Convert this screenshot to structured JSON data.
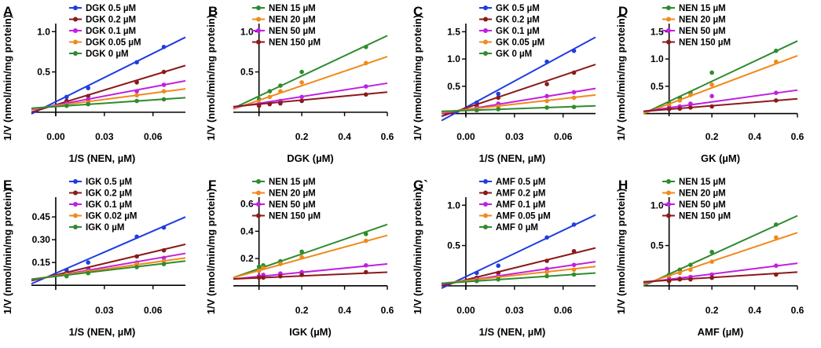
{
  "figure": {
    "ylabel_common": "1/V (nmol/min/mg protein)"
  },
  "chart_data": [
    {
      "label": "A",
      "type": "line",
      "mode": "lb",
      "xlabel": "1/S (NEN, µM)",
      "ylabel": "1/V (nmol/min/mg protein)",
      "xlim": [
        -0.015,
        0.08
      ],
      "ylim": [
        -0.05,
        1.1
      ],
      "xticks": [
        "0.00",
        "0.03",
        "0.06"
      ],
      "xtick_values": [
        0.0,
        0.03,
        0.06
      ],
      "yticks": [
        "0.5",
        "1.0"
      ],
      "ytick_values": [
        0.5,
        1.0
      ],
      "series": [
        {
          "name": "DGK 0.5 µM",
          "color": "#1f3de0",
          "x": [
            0.0067,
            0.02,
            0.05,
            0.0667
          ],
          "y": [
            0.19,
            0.3,
            0.62,
            0.81
          ],
          "fit": [
            -0.015,
            -0.02,
            0.08,
            0.93
          ]
        },
        {
          "name": "DGK 0.2 µM",
          "color": "#8b1a1a",
          "x": [
            0.0067,
            0.02,
            0.05,
            0.0667
          ],
          "y": [
            0.14,
            0.2,
            0.37,
            0.5
          ],
          "fit": [
            -0.015,
            0.0,
            0.08,
            0.58
          ]
        },
        {
          "name": "DGK 0.1 µM",
          "color": "#c020e0",
          "x": [
            0.0067,
            0.02,
            0.05,
            0.0667
          ],
          "y": [
            0.11,
            0.16,
            0.26,
            0.34
          ],
          "fit": [
            -0.015,
            0.03,
            0.08,
            0.39
          ]
        },
        {
          "name": "DGK 0.05 µM",
          "color": "#f08a1c",
          "x": [
            0.0067,
            0.02,
            0.05,
            0.0667
          ],
          "y": [
            0.09,
            0.12,
            0.21,
            0.26
          ],
          "fit": [
            -0.015,
            0.04,
            0.08,
            0.29
          ]
        },
        {
          "name": "DGK 0 µM",
          "color": "#2e8b2e",
          "x": [
            0.0067,
            0.02,
            0.05,
            0.0667
          ],
          "y": [
            0.08,
            0.1,
            0.14,
            0.16
          ],
          "fit": [
            -0.015,
            0.05,
            0.08,
            0.18
          ]
        }
      ]
    },
    {
      "label": "B",
      "type": "line",
      "mode": "sec",
      "xlabel": "DGK (µM)",
      "ylabel": "1/V (nmol/min/mg protein)",
      "xlim": [
        -0.12,
        0.6
      ],
      "ylim": [
        -0.05,
        1.1
      ],
      "xticks": [
        "0.2",
        "0.4",
        "0.6"
      ],
      "xtick_values": [
        0.2,
        0.4,
        0.6
      ],
      "yticks": [
        "0.5",
        "1.0"
      ],
      "ytick_values": [
        0.5,
        1.0
      ],
      "series": [
        {
          "name": "NEN 15 µM",
          "color": "#2e8b2e",
          "x": [
            0.0,
            0.05,
            0.1,
            0.2,
            0.5
          ],
          "y": [
            0.16,
            0.26,
            0.33,
            0.5,
            0.81
          ],
          "fit": [
            -0.12,
            0.05,
            0.6,
            0.95
          ]
        },
        {
          "name": "NEN 20 µM",
          "color": "#f08a1c",
          "x": [
            0.0,
            0.05,
            0.1,
            0.2,
            0.5
          ],
          "y": [
            0.11,
            0.19,
            0.26,
            0.37,
            0.61
          ],
          "fit": [
            -0.12,
            0.04,
            0.6,
            0.69
          ]
        },
        {
          "name": "NEN 50 µM",
          "color": "#c020e0",
          "x": [
            0.0,
            0.05,
            0.1,
            0.2,
            0.5
          ],
          "y": [
            0.09,
            0.11,
            0.14,
            0.19,
            0.32
          ],
          "fit": [
            -0.12,
            0.06,
            0.6,
            0.36
          ]
        },
        {
          "name": "NEN 150 µM",
          "color": "#8b1a1a",
          "x": [
            0.0,
            0.05,
            0.1,
            0.2,
            0.5
          ],
          "y": [
            0.08,
            0.1,
            0.11,
            0.14,
            0.22
          ],
          "fit": [
            -0.12,
            0.07,
            0.6,
            0.25
          ]
        }
      ]
    },
    {
      "label": "C",
      "type": "line",
      "mode": "lb",
      "xlabel": "1/S (NEN, µM)",
      "ylabel": "1/V (nmol/min/mg protein)",
      "xlim": [
        -0.015,
        0.08
      ],
      "ylim": [
        -0.05,
        1.65
      ],
      "xticks": [
        "0.00",
        "0.03",
        "0.06"
      ],
      "xtick_values": [
        0.0,
        0.03,
        0.06
      ],
      "yticks": [
        "0.5",
        "1.0",
        "1.5"
      ],
      "ytick_values": [
        0.5,
        1.0,
        1.5
      ],
      "series": [
        {
          "name": "GK 0.5 µM",
          "color": "#1f3de0",
          "x": [
            0.0067,
            0.02,
            0.05,
            0.0667
          ],
          "y": [
            0.2,
            0.36,
            0.95,
            1.15
          ],
          "fit": [
            -0.015,
            -0.13,
            0.08,
            1.4
          ]
        },
        {
          "name": "GK 0.2 µM",
          "color": "#8b1a1a",
          "x": [
            0.0067,
            0.02,
            0.05,
            0.0667
          ],
          "y": [
            0.14,
            0.29,
            0.54,
            0.75
          ],
          "fit": [
            -0.015,
            -0.05,
            0.08,
            0.9
          ]
        },
        {
          "name": "GK 0.1 µM",
          "color": "#c020e0",
          "x": [
            0.0067,
            0.02,
            0.05,
            0.0667
          ],
          "y": [
            0.1,
            0.18,
            0.32,
            0.39
          ],
          "fit": [
            -0.015,
            0.0,
            0.08,
            0.46
          ]
        },
        {
          "name": "GK 0.05 µM",
          "color": "#f08a1c",
          "x": [
            0.0067,
            0.02,
            0.05,
            0.0667
          ],
          "y": [
            0.08,
            0.13,
            0.23,
            0.29
          ],
          "fit": [
            -0.015,
            0.02,
            0.08,
            0.34
          ]
        },
        {
          "name": "GK 0 µM",
          "color": "#2e8b2e",
          "x": [
            0.0067,
            0.02,
            0.05,
            0.0667
          ],
          "y": [
            0.06,
            0.08,
            0.11,
            0.12
          ],
          "fit": [
            -0.015,
            0.04,
            0.08,
            0.14
          ]
        }
      ]
    },
    {
      "label": "D",
      "type": "line",
      "mode": "sec",
      "xlabel": "GK (µM)",
      "ylabel": "1/V (nmol/min/mg protein)",
      "xlim": [
        -0.12,
        0.6
      ],
      "ylim": [
        -0.05,
        1.65
      ],
      "xticks": [
        "0.2",
        "0.4",
        "0.6"
      ],
      "xtick_values": [
        0.2,
        0.4,
        0.6
      ],
      "yticks": [
        "0.5",
        "1.0",
        "1.5"
      ],
      "ytick_values": [
        0.5,
        1.0,
        1.5
      ],
      "series": [
        {
          "name": "NEN 15 µM",
          "color": "#2e8b2e",
          "x": [
            0.0,
            0.05,
            0.1,
            0.2,
            0.5
          ],
          "y": [
            0.19,
            0.29,
            0.38,
            0.75,
            1.15
          ],
          "fit": [
            -0.12,
            0.0,
            0.6,
            1.33
          ]
        },
        {
          "name": "NEN 20 µM",
          "color": "#f08a1c",
          "x": [
            0.0,
            0.05,
            0.1,
            0.2,
            0.5
          ],
          "y": [
            0.14,
            0.24,
            0.34,
            0.53,
            0.95
          ],
          "fit": [
            -0.12,
            0.0,
            0.6,
            1.06
          ]
        },
        {
          "name": "NEN 50 µM",
          "color": "#c020e0",
          "x": [
            0.0,
            0.05,
            0.1,
            0.2,
            0.5
          ],
          "y": [
            0.1,
            0.13,
            0.18,
            0.32,
            0.38
          ],
          "fit": [
            -0.12,
            0.04,
            0.6,
            0.43
          ]
        },
        {
          "name": "NEN 150 µM",
          "color": "#8b1a1a",
          "x": [
            0.0,
            0.05,
            0.1,
            0.2,
            0.5
          ],
          "y": [
            0.08,
            0.09,
            0.11,
            0.13,
            0.24
          ],
          "fit": [
            -0.12,
            0.04,
            0.6,
            0.27
          ]
        }
      ]
    },
    {
      "label": "E",
      "type": "line",
      "mode": "lb",
      "xlabel": "1/S (NEN, µM)",
      "ylabel": "1/V (nmol/min/mg protein)",
      "xlim": [
        -0.015,
        0.08
      ],
      "ylim": [
        -0.03,
        0.58
      ],
      "xticks": [
        "0.03",
        "0.06"
      ],
      "xtick_values": [
        0.03,
        0.06
      ],
      "yticks": [
        "0.15",
        "0.30",
        "0.45"
      ],
      "ytick_values": [
        0.15,
        0.3,
        0.45
      ],
      "series": [
        {
          "name": "IGK 0.5 µM",
          "color": "#1f3de0",
          "x": [
            0.0067,
            0.02,
            0.05,
            0.0667
          ],
          "y": [
            0.1,
            0.15,
            0.32,
            0.38
          ],
          "fit": [
            -0.015,
            0.01,
            0.08,
            0.45
          ]
        },
        {
          "name": "IGK 0.2 µM",
          "color": "#8b1a1a",
          "x": [
            0.0067,
            0.02,
            0.05,
            0.0667
          ],
          "y": [
            0.08,
            0.11,
            0.19,
            0.23
          ],
          "fit": [
            -0.015,
            0.03,
            0.08,
            0.27
          ]
        },
        {
          "name": "IGK 0.1 µM",
          "color": "#c020e0",
          "x": [
            0.0067,
            0.02,
            0.05,
            0.0667
          ],
          "y": [
            0.07,
            0.1,
            0.15,
            0.18
          ],
          "fit": [
            -0.015,
            0.035,
            0.08,
            0.21
          ]
        },
        {
          "name": "IGK 0.02 µM",
          "color": "#f08a1c",
          "x": [
            0.0067,
            0.02,
            0.05,
            0.0667
          ],
          "y": [
            0.07,
            0.09,
            0.14,
            0.16
          ],
          "fit": [
            -0.015,
            0.04,
            0.08,
            0.18
          ]
        },
        {
          "name": "IGK 0 µM",
          "color": "#2e8b2e",
          "x": [
            0.0067,
            0.02,
            0.05,
            0.0667
          ],
          "y": [
            0.06,
            0.08,
            0.12,
            0.14
          ],
          "fit": [
            -0.015,
            0.04,
            0.08,
            0.16
          ]
        }
      ]
    },
    {
      "label": "F",
      "type": "line",
      "mode": "sec",
      "xlabel": "IGK (µM)",
      "ylabel": "1/V (nmol/min/mg protein)",
      "xlim": [
        -0.12,
        0.6
      ],
      "ylim": [
        -0.03,
        0.65
      ],
      "xticks": [
        "0.2",
        "0.4",
        "0.6"
      ],
      "xtick_values": [
        0.2,
        0.4,
        0.6
      ],
      "yticks": [
        "0.2",
        "0.4",
        "0.6"
      ],
      "ytick_values": [
        0.2,
        0.4,
        0.6
      ],
      "series": [
        {
          "name": "NEN 15 µM",
          "color": "#2e8b2e",
          "x": [
            0.0,
            0.02,
            0.1,
            0.2,
            0.5
          ],
          "y": [
            0.14,
            0.15,
            0.18,
            0.25,
            0.38
          ],
          "fit": [
            -0.12,
            0.06,
            0.6,
            0.45
          ]
        },
        {
          "name": "NEN 20 µM",
          "color": "#f08a1c",
          "x": [
            0.0,
            0.02,
            0.1,
            0.2,
            0.5
          ],
          "y": [
            0.11,
            0.13,
            0.16,
            0.21,
            0.33
          ],
          "fit": [
            -0.12,
            0.06,
            0.6,
            0.37
          ]
        },
        {
          "name": "NEN 50 µM",
          "color": "#c020e0",
          "x": [
            0.0,
            0.02,
            0.1,
            0.2,
            0.5
          ],
          "y": [
            0.07,
            0.08,
            0.09,
            0.1,
            0.15
          ],
          "fit": [
            -0.12,
            0.05,
            0.6,
            0.16
          ]
        },
        {
          "name": "NEN 150 µM",
          "color": "#8b1a1a",
          "x": [
            0.0,
            0.02,
            0.1,
            0.2,
            0.5
          ],
          "y": [
            0.06,
            0.06,
            0.07,
            0.08,
            0.1
          ],
          "fit": [
            -0.12,
            0.05,
            0.6,
            0.1
          ]
        }
      ]
    },
    {
      "label": "G`",
      "type": "line",
      "mode": "lb",
      "xlabel": "1/S (NEN, µM)",
      "ylabel": "1/V (nmol/min/mg protein)",
      "xlim": [
        -0.015,
        0.08
      ],
      "ylim": [
        -0.05,
        1.1
      ],
      "xticks": [
        "0.00",
        "0.03",
        "0.06"
      ],
      "xtick_values": [
        0.0,
        0.03,
        0.06
      ],
      "yticks": [
        "0.5",
        "1.0"
      ],
      "ytick_values": [
        0.5,
        1.0
      ],
      "series": [
        {
          "name": "AMF 0.5 µM",
          "color": "#1f3de0",
          "x": [
            0.0067,
            0.02,
            0.05,
            0.0667
          ],
          "y": [
            0.16,
            0.25,
            0.6,
            0.76
          ],
          "fit": [
            -0.015,
            -0.03,
            0.08,
            0.88
          ]
        },
        {
          "name": "AMF 0.2 µM",
          "color": "#8b1a1a",
          "x": [
            0.0067,
            0.02,
            0.05,
            0.0667
          ],
          "y": [
            0.1,
            0.16,
            0.31,
            0.43
          ],
          "fit": [
            -0.015,
            0.0,
            0.08,
            0.47
          ]
        },
        {
          "name": "AMF 0.1 µM",
          "color": "#c020e0",
          "x": [
            0.0067,
            0.02,
            0.05,
            0.0667
          ],
          "y": [
            0.08,
            0.12,
            0.21,
            0.26
          ],
          "fit": [
            -0.015,
            0.02,
            0.08,
            0.3
          ]
        },
        {
          "name": "AMF 0.05 µM",
          "color": "#f08a1c",
          "x": [
            0.0067,
            0.02,
            0.05,
            0.0667
          ],
          "y": [
            0.07,
            0.1,
            0.17,
            0.2
          ],
          "fit": [
            -0.015,
            0.03,
            0.08,
            0.24
          ]
        },
        {
          "name": "AMF 0 µM",
          "color": "#2e8b2e",
          "x": [
            0.0067,
            0.02,
            0.05,
            0.0667
          ],
          "y": [
            0.06,
            0.08,
            0.12,
            0.14
          ],
          "fit": [
            -0.015,
            0.03,
            0.08,
            0.16
          ]
        }
      ]
    },
    {
      "label": "H",
      "type": "line",
      "mode": "sec",
      "xlabel": "AMF (µM)",
      "ylabel": "1/V (nmol/min/mg protein)",
      "xlim": [
        -0.12,
        0.6
      ],
      "ylim": [
        -0.05,
        1.1
      ],
      "xticks": [
        "0.2",
        "0.4",
        "0.6"
      ],
      "xtick_values": [
        0.2,
        0.4,
        0.6
      ],
      "yticks": [
        "0.5",
        "1.0"
      ],
      "ytick_values": [
        0.5,
        1.0
      ],
      "series": [
        {
          "name": "NEN 15 µM",
          "color": "#2e8b2e",
          "x": [
            0.0,
            0.05,
            0.1,
            0.2,
            0.5
          ],
          "y": [
            0.14,
            0.2,
            0.26,
            0.42,
            0.76
          ],
          "fit": [
            -0.12,
            0.0,
            0.6,
            0.87
          ]
        },
        {
          "name": "NEN 20 µM",
          "color": "#f08a1c",
          "x": [
            0.0,
            0.05,
            0.1,
            0.2,
            0.5
          ],
          "y": [
            0.1,
            0.16,
            0.2,
            0.3,
            0.6
          ],
          "fit": [
            -0.12,
            0.02,
            0.6,
            0.66
          ]
        },
        {
          "name": "NEN 50 µM",
          "color": "#c020e0",
          "x": [
            0.0,
            0.05,
            0.1,
            0.2,
            0.5
          ],
          "y": [
            0.08,
            0.09,
            0.11,
            0.14,
            0.25
          ],
          "fit": [
            -0.12,
            0.04,
            0.6,
            0.28
          ]
        },
        {
          "name": "NEN 150 µM",
          "color": "#8b1a1a",
          "x": [
            0.0,
            0.05,
            0.1,
            0.2,
            0.5
          ],
          "y": [
            0.06,
            0.08,
            0.08,
            0.1,
            0.14
          ],
          "fit": [
            -0.12,
            0.05,
            0.6,
            0.17
          ]
        }
      ]
    }
  ]
}
